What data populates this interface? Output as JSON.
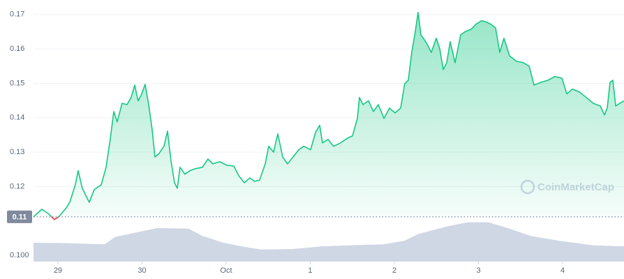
{
  "chart_data": {
    "type": "line",
    "watermark": "CoinMarketCap",
    "xlim": [
      -0.29,
      6.73
    ],
    "xticks": [
      {
        "value": 0,
        "label": "29"
      },
      {
        "value": 1,
        "label": "30"
      },
      {
        "value": 2,
        "label": "Oct"
      },
      {
        "value": 3,
        "label": "1"
      },
      {
        "value": 4,
        "label": "2"
      },
      {
        "value": 5,
        "label": "3"
      },
      {
        "value": 6,
        "label": "4"
      }
    ],
    "ylim": [
      0.0982,
      0.1732
    ],
    "yticks": [
      0.17,
      0.16,
      0.15,
      0.14,
      0.13,
      0.12,
      {
        "value": 0.1,
        "label": "0.100"
      }
    ],
    "grid": true,
    "baseline": {
      "value": 0.1112,
      "label": "0.11"
    },
    "series": [
      {
        "color": "#16c784",
        "down_color": "#ea3943",
        "x": [
          -0.29,
          -0.191,
          -0.108,
          -0.041,
          0.017,
          0.1,
          0.141,
          0.207,
          0.241,
          0.29,
          0.373,
          0.432,
          0.515,
          0.573,
          0.622,
          0.664,
          0.705,
          0.763,
          0.822,
          0.871,
          0.913,
          0.954,
          0.996,
          1.037,
          1.079,
          1.12,
          1.154,
          1.203,
          1.261,
          1.303,
          1.344,
          1.386,
          1.419,
          1.452,
          1.51,
          1.568,
          1.635,
          1.718,
          1.784,
          1.842,
          1.925,
          2.008,
          2.091,
          2.149,
          2.216,
          2.282,
          2.34,
          2.398,
          2.465,
          2.506,
          2.564,
          2.614,
          2.672,
          2.73,
          2.797,
          2.863,
          2.921,
          3.004,
          3.062,
          3.112,
          3.145,
          3.212,
          3.278,
          3.361,
          3.444,
          3.502,
          3.56,
          3.585,
          3.627,
          3.693,
          3.751,
          3.809,
          3.876,
          3.942,
          4.008,
          4.075,
          4.124,
          4.166,
          4.207,
          4.249,
          4.282,
          4.315,
          4.373,
          4.44,
          4.498,
          4.539,
          4.581,
          4.622,
          4.664,
          4.722,
          4.788,
          4.846,
          4.913,
          4.971,
          5.037,
          5.095,
          5.145,
          5.203,
          5.253,
          5.303,
          5.369,
          5.452,
          5.535,
          5.602,
          5.66,
          5.743,
          5.826,
          5.909,
          5.992,
          6.05,
          6.116,
          6.199,
          6.282,
          6.365,
          6.448,
          6.498,
          6.531,
          6.564,
          6.598,
          6.631,
          6.68,
          6.73
        ],
        "values": [
          0.1112,
          0.1134,
          0.112,
          0.1104,
          0.1114,
          0.1138,
          0.1154,
          0.1205,
          0.1246,
          0.1195,
          0.1154,
          0.1191,
          0.1205,
          0.1256,
          0.1337,
          0.1418,
          0.1388,
          0.1442,
          0.1438,
          0.1459,
          0.1495,
          0.1449,
          0.1469,
          0.1497,
          0.1438,
          0.1367,
          0.1286,
          0.1296,
          0.1317,
          0.1361,
          0.1276,
          0.1211,
          0.1195,
          0.1256,
          0.1236,
          0.1246,
          0.1252,
          0.1256,
          0.128,
          0.1266,
          0.1272,
          0.1262,
          0.126,
          0.1232,
          0.1211,
          0.1225,
          0.1215,
          0.1219,
          0.1266,
          0.1317,
          0.13,
          0.1353,
          0.1286,
          0.1266,
          0.1286,
          0.1307,
          0.1317,
          0.1307,
          0.1357,
          0.1378,
          0.1327,
          0.1337,
          0.1317,
          0.1327,
          0.1341,
          0.1347,
          0.1398,
          0.1459,
          0.1438,
          0.1449,
          0.1418,
          0.1438,
          0.1398,
          0.1428,
          0.1414,
          0.1428,
          0.1499,
          0.1509,
          0.159,
          0.1651,
          0.1706,
          0.1641,
          0.1621,
          0.159,
          0.1631,
          0.1601,
          0.154,
          0.156,
          0.1621,
          0.156,
          0.1641,
          0.1651,
          0.1657,
          0.1672,
          0.1682,
          0.1678,
          0.1672,
          0.1661,
          0.159,
          0.1631,
          0.158,
          0.1564,
          0.156,
          0.155,
          0.1495,
          0.1503,
          0.1509,
          0.152,
          0.1515,
          0.1469,
          0.1483,
          0.1475,
          0.1459,
          0.1442,
          0.1434,
          0.1408,
          0.1428,
          0.1503,
          0.1509,
          0.1434,
          0.1442,
          0.1449
        ]
      }
    ],
    "volume": {
      "color": "#cfd6e4",
      "vlim": [
        0,
        100
      ],
      "x": [
        -0.29,
        0.141,
        0.556,
        0.68,
        0.971,
        1.178,
        1.552,
        1.718,
        1.967,
        2.216,
        2.423,
        2.797,
        3.129,
        3.461,
        3.876,
        4.124,
        4.29,
        4.622,
        4.871,
        5.12,
        5.369,
        5.618,
        5.95,
        6.365,
        6.73
      ],
      "values": [
        36,
        35,
        33,
        47,
        57,
        64,
        63,
        49,
        36,
        28,
        23,
        24,
        29,
        31,
        33,
        40,
        53,
        67,
        75,
        75,
        63,
        49,
        40,
        31,
        29
      ]
    }
  }
}
